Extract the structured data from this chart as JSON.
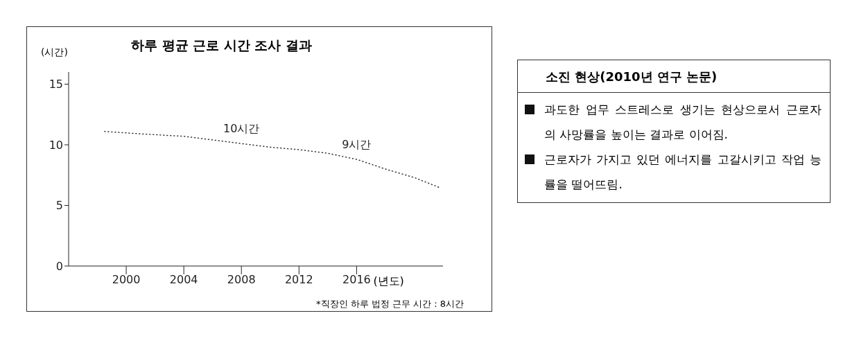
{
  "chart_data": [
    {
      "type": "line",
      "title": "하루 평균 근로 시간 조사 결과",
      "ylabel": "(시간)",
      "xlabel": "(년도)",
      "x": [
        1998.5,
        2001,
        2004,
        2006,
        2008,
        2010,
        2012,
        2014,
        2016,
        2018,
        2020,
        2021.7
      ],
      "series": [
        {
          "color": "#333333",
          "values": [
            11.1,
            10.9,
            10.7,
            10.4,
            10.1,
            9.8,
            9.6,
            9.3,
            8.8,
            8.0,
            7.3,
            6.5
          ]
        }
      ],
      "xlim": [
        1996,
        2022
      ],
      "xticks": [
        2000,
        2004,
        2008,
        2012,
        2016
      ],
      "ylim": [
        0,
        16
      ],
      "yticks": [
        0,
        5,
        10,
        15
      ],
      "grid": false,
      "marker": "none",
      "line_style": "dotted",
      "annotations": [
        {
          "text": "10시간",
          "x": 2008,
          "y": 10.1
        },
        {
          "text": "9시간",
          "x": 2016,
          "y": 8.8
        },
        "*직장인 하루 법정 근무 시간 : 8시간"
      ]
    },
    {
      "type": "other",
      "title": "소진 현상(2010년 연구 논문)",
      "annotations": [
        "과도한 업무 스트레스로 생기는 현상으로서 근로자의 사망률을 높이는 결과로 이어짐.",
        "근로자가 가지고 있던 에너지를 고갈시키고 작업 능률을 떨어뜨림."
      ]
    }
  ]
}
